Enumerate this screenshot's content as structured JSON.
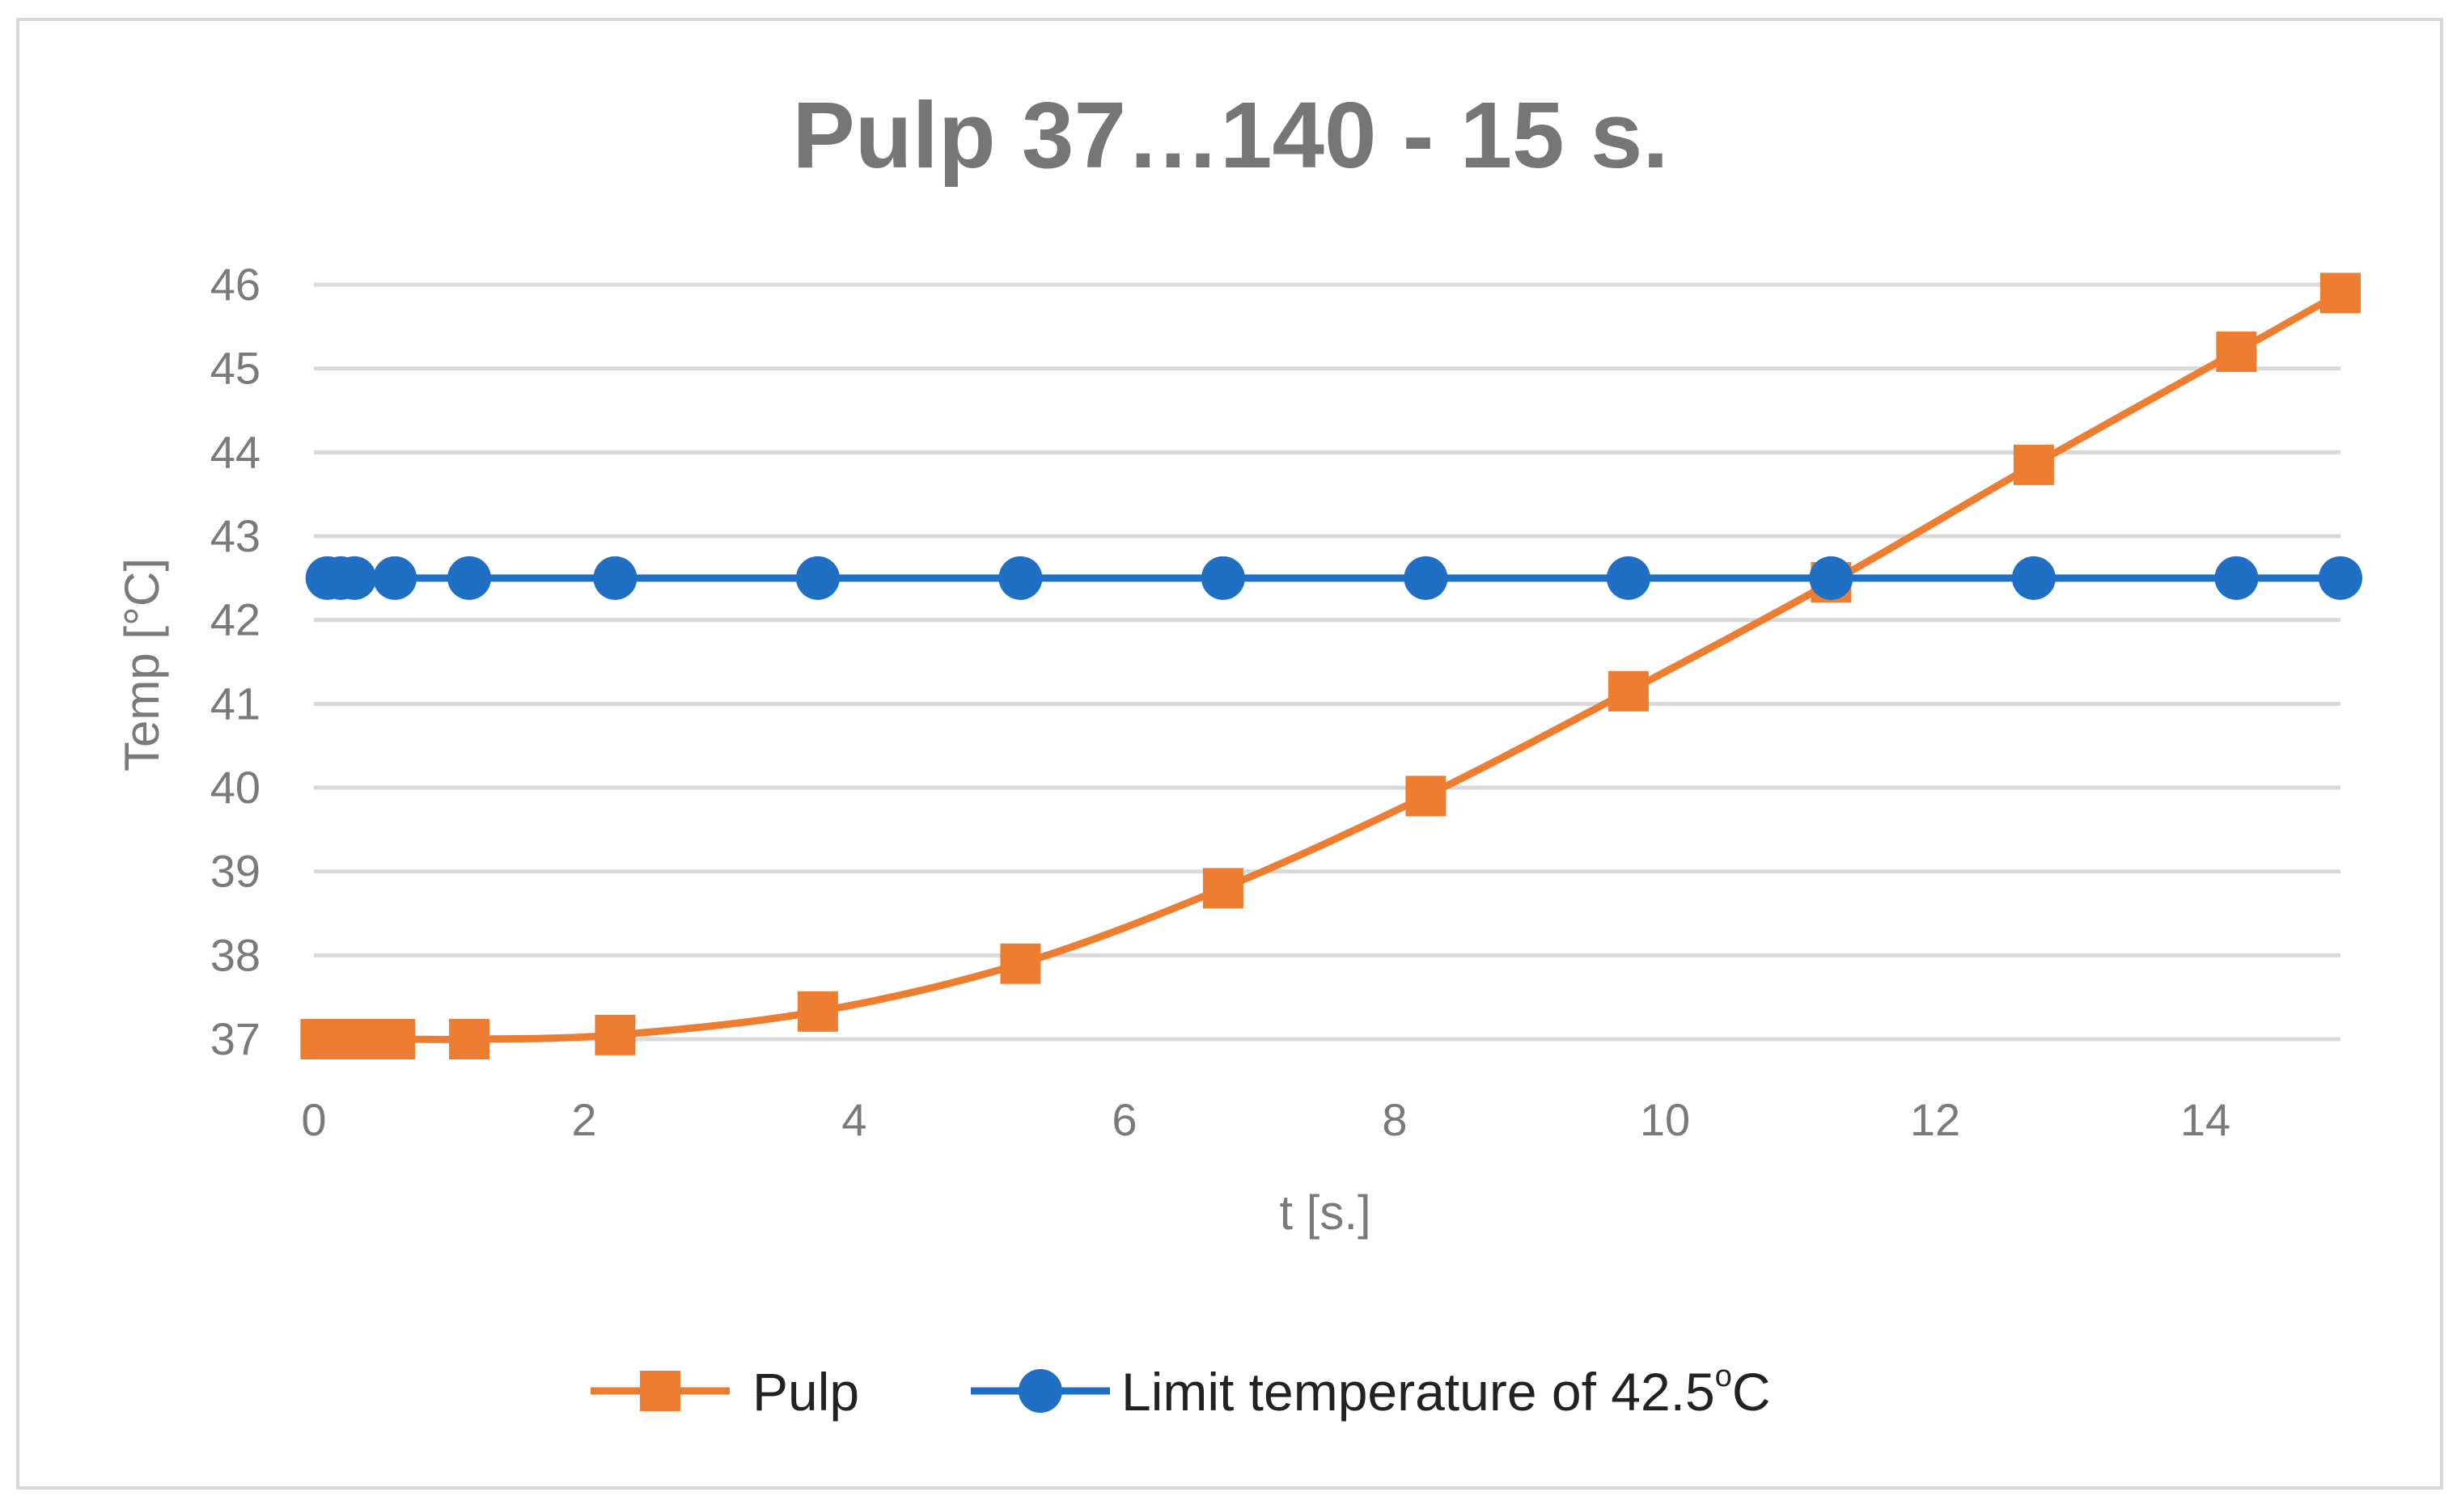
{
  "chart_data": {
    "type": "line",
    "title": "Pulp 37…140 - 15 s.",
    "xlabel": "t [s.]",
    "ylabel": "Temp [°C]",
    "xlim": [
      0,
      15
    ],
    "ylim": [
      37,
      46
    ],
    "x_ticks": [
      "0",
      "2",
      "4",
      "6",
      "8",
      "10",
      "12",
      "14"
    ],
    "y_ticks": [
      "37",
      "38",
      "39",
      "40",
      "41",
      "42",
      "43",
      "44",
      "45",
      "46"
    ],
    "grid": "horizontal",
    "legend_position": "bottom",
    "series": [
      {
        "name": "Pulp",
        "marker": "square",
        "color": "#ED7D31",
        "points": [
          [
            0.05,
            37.0
          ],
          [
            0.15,
            37.0
          ],
          [
            0.25,
            37.0
          ],
          [
            0.35,
            37.0
          ],
          [
            0.6,
            37.0
          ],
          [
            1.15,
            37.0
          ],
          [
            2.23,
            37.05
          ],
          [
            3.73,
            37.33
          ],
          [
            5.23,
            37.9
          ],
          [
            6.73,
            38.8
          ],
          [
            8.23,
            39.9
          ],
          [
            9.73,
            41.15
          ],
          [
            11.23,
            42.45
          ],
          [
            12.73,
            43.85
          ],
          [
            14.23,
            45.2
          ],
          [
            15.0,
            45.9
          ]
        ]
      },
      {
        "name": "Limit temperature of 42.5",
        "name_suffix": "C",
        "name_degree": "o",
        "marker": "circle",
        "color": "#1F6FC5",
        "points": [
          [
            0.1,
            42.5
          ],
          [
            0.2,
            42.5
          ],
          [
            0.3,
            42.5
          ],
          [
            0.6,
            42.5
          ],
          [
            1.15,
            42.5
          ],
          [
            2.23,
            42.5
          ],
          [
            3.73,
            42.5
          ],
          [
            5.23,
            42.5
          ],
          [
            6.73,
            42.5
          ],
          [
            8.23,
            42.5
          ],
          [
            9.73,
            42.5
          ],
          [
            11.23,
            42.5
          ],
          [
            12.73,
            42.5
          ],
          [
            14.23,
            42.5
          ],
          [
            15.0,
            42.5
          ]
        ]
      }
    ]
  }
}
